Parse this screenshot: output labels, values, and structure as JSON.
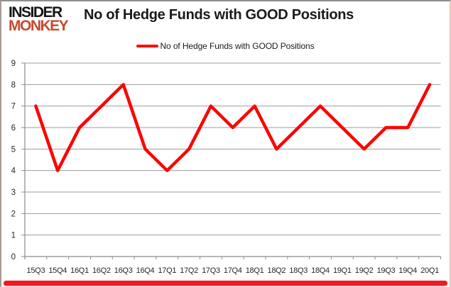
{
  "brand": {
    "line1": "INSIDER",
    "line2": "MONKEY",
    "color_line1": "#151515",
    "color_line2": "#c7492f"
  },
  "header": {
    "title": "No of Hedge Funds with GOOD Positions"
  },
  "legend": {
    "label": "No of Hedge Funds with GOOD Positions",
    "swatch_color": "#ff0000"
  },
  "frame": {
    "bottom_bar_color": "#ec1c24"
  },
  "chart_data": {
    "type": "line",
    "title": "No of Hedge Funds with GOOD Positions",
    "categories": [
      "15Q3",
      "15Q4",
      "16Q1",
      "16Q2",
      "16Q3",
      "16Q4",
      "17Q1",
      "17Q2",
      "17Q3",
      "17Q4",
      "18Q1",
      "18Q2",
      "18Q3",
      "18Q4",
      "19Q1",
      "19Q2",
      "19Q3",
      "19Q4",
      "20Q1"
    ],
    "values": [
      7,
      4,
      6,
      7,
      8,
      5,
      4,
      5,
      7,
      6,
      7,
      5,
      6,
      7,
      6,
      5,
      6,
      6,
      8
    ],
    "xlabel": "",
    "ylabel": "",
    "ylim": [
      0,
      9
    ],
    "ytick_step": 1,
    "grid": true,
    "legend_position": "top",
    "line_color": "#ff0000",
    "grid_color": "#9c9c9c",
    "axis_color": "#8c8c8c",
    "tick_label_color": "#262626"
  }
}
